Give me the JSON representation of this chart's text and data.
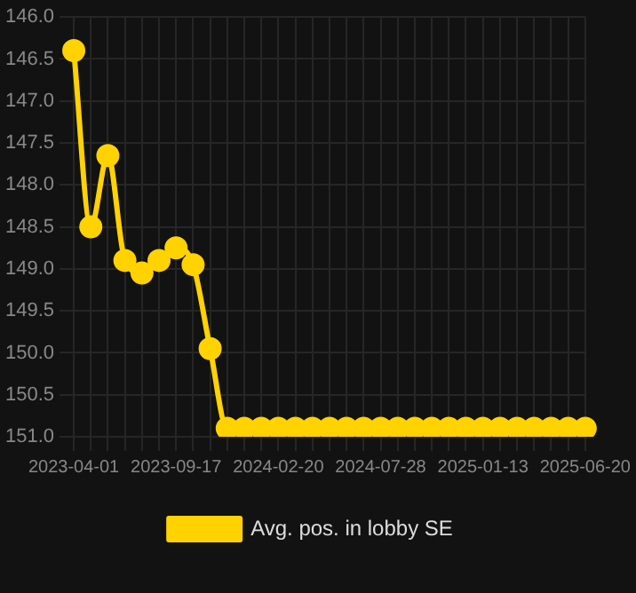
{
  "chart_data": {
    "type": "line",
    "categories": [
      "2023-04-01",
      null,
      null,
      null,
      null,
      null,
      "2023-09-17",
      null,
      null,
      null,
      null,
      null,
      "2024-02-20",
      null,
      null,
      null,
      null,
      null,
      "2024-07-28",
      null,
      null,
      null,
      null,
      null,
      "2025-01-13",
      null,
      null,
      null,
      null,
      null,
      "2025-06-20"
    ],
    "series": [
      {
        "name": "Avg. pos. in lobby SE",
        "color": "#ffd200",
        "values": [
          146.4,
          148.5,
          147.65,
          148.9,
          149.05,
          148.9,
          148.75,
          148.95,
          149.95,
          150.9,
          150.9,
          150.9,
          150.9,
          150.9,
          150.9,
          150.9,
          150.9,
          150.9,
          150.9,
          150.9,
          150.9,
          150.9,
          150.9,
          150.9,
          150.9,
          150.9,
          150.9,
          150.9,
          150.9,
          150.9,
          150.9
        ]
      }
    ],
    "ylim": [
      151,
      146
    ],
    "yticks": [
      {
        "value": 146,
        "label": "146.0"
      },
      146.5,
      {
        "value": 147,
        "label": "147.0"
      },
      147.5,
      {
        "value": 148,
        "label": "148.0"
      },
      148.5,
      {
        "value": 149,
        "label": "149.0"
      },
      149.5,
      {
        "value": 150,
        "label": "150.0"
      },
      150.5,
      {
        "value": 151,
        "label": "151.0"
      }
    ],
    "grid": true,
    "legend": "bottom",
    "marker": "circle",
    "line_style": "solid"
  }
}
